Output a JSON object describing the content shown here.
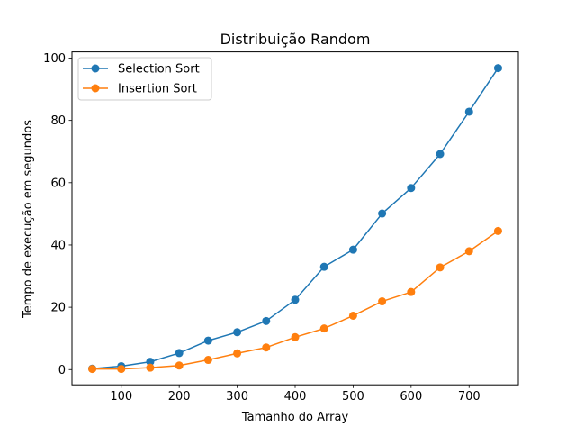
{
  "chart_data": {
    "type": "line",
    "title": "Distribuição Random",
    "xlabel": "Tamanho do Array",
    "ylabel": "Tempo de execução em segundos",
    "x": [
      50,
      100,
      150,
      200,
      250,
      300,
      350,
      400,
      450,
      500,
      550,
      600,
      650,
      700,
      750
    ],
    "xlim": [
      15,
      785
    ],
    "ylim": [
      -4.9,
      102
    ],
    "xticks": [
      100,
      200,
      300,
      400,
      500,
      600,
      700
    ],
    "yticks": [
      0,
      20,
      40,
      60,
      80,
      100
    ],
    "grid": false,
    "legend_position": "upper-left",
    "series": [
      {
        "name": "Selection Sort",
        "color": "#1f77b4",
        "values": [
          0.3,
          1.1,
          2.5,
          5.3,
          9.3,
          12.0,
          15.6,
          22.4,
          33.0,
          38.5,
          50.1,
          58.3,
          69.2,
          82.8,
          96.8
        ]
      },
      {
        "name": "Insertion Sort",
        "color": "#ff7f0e",
        "values": [
          0.2,
          0.2,
          0.6,
          1.3,
          3.1,
          5.2,
          7.1,
          10.4,
          13.2,
          17.3,
          21.9,
          24.9,
          32.8,
          38.0,
          44.5
        ]
      }
    ]
  }
}
